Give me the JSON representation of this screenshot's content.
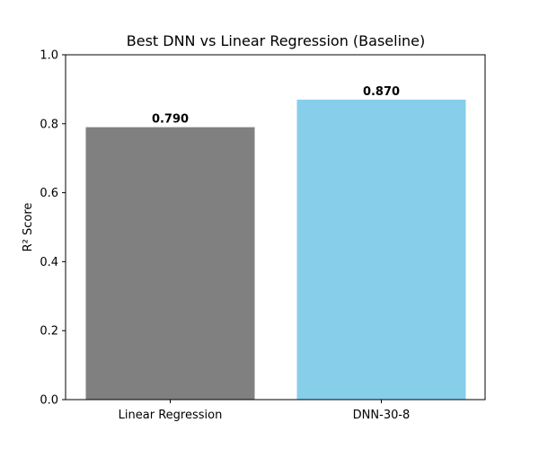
{
  "chart_data": {
    "type": "bar",
    "title": "Best DNN vs Linear Regression (Baseline)",
    "xlabel": "",
    "ylabel": "R² Score",
    "categories": [
      "Linear Regression",
      "DNN-30-8"
    ],
    "values": [
      0.79,
      0.87
    ],
    "value_labels": [
      "0.790",
      "0.870"
    ],
    "colors": [
      "#808080",
      "#87ceeb"
    ],
    "ylim": [
      0,
      1.0
    ],
    "yticks": [
      0.0,
      0.2,
      0.4,
      0.6,
      0.8,
      1.0
    ],
    "ytick_labels": [
      "0.0",
      "0.2",
      "0.4",
      "0.6",
      "0.8",
      "1.0"
    ],
    "grid": false,
    "legend": "none"
  }
}
